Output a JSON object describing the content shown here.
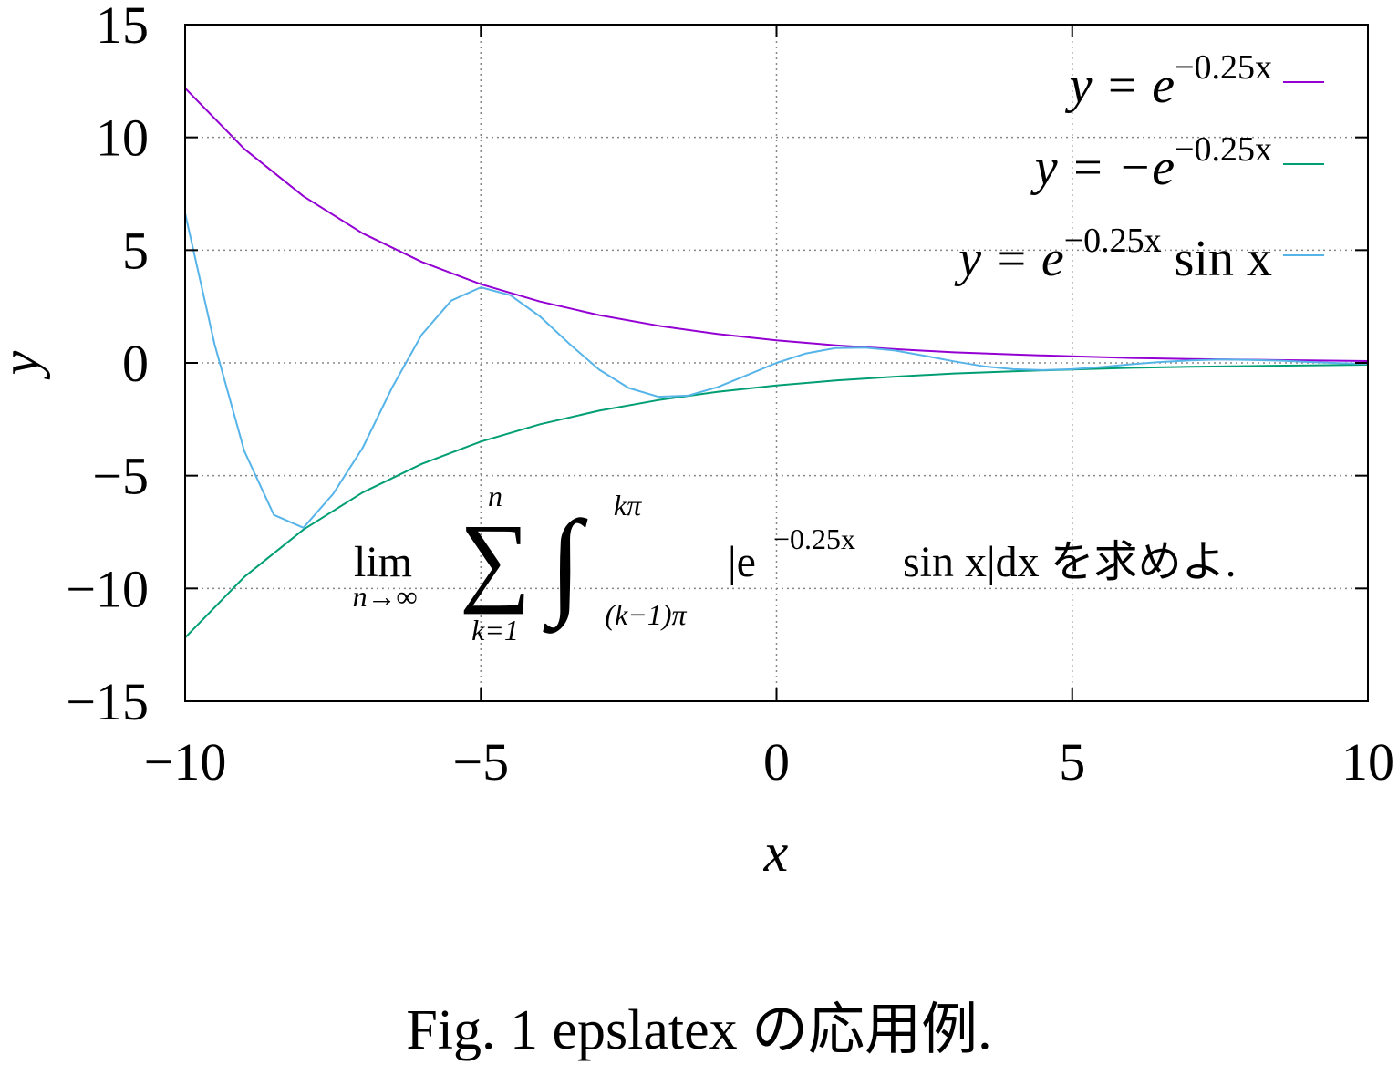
{
  "chart_data": {
    "type": "line",
    "xlabel": "x",
    "ylabel": "y",
    "xlim": [
      -10,
      10
    ],
    "ylim": [
      -15,
      15
    ],
    "grid": true,
    "grid_style": "dotted",
    "legend_placement": "top-right",
    "x_ticks": [
      -10,
      -5,
      0,
      5,
      10
    ],
    "y_ticks": [
      -15,
      -10,
      -5,
      0,
      5,
      10,
      15
    ],
    "x_tick_labels": [
      "−10",
      "−5",
      "0",
      "5",
      "10"
    ],
    "y_tick_labels": [
      "−15",
      "−10",
      "−5",
      "0",
      "5",
      "10",
      "15"
    ],
    "series": [
      {
        "name": "y = e^{−0.25x}",
        "legend": {
          "main": "y = e",
          "sup": "−0.25x",
          "tail": ""
        },
        "color": "#9400d3",
        "x": [
          -10,
          -9,
          -8,
          -7,
          -6,
          -5,
          -4,
          -3,
          -2,
          -1,
          0,
          1,
          2,
          3,
          4,
          5,
          6,
          7,
          8,
          9,
          10
        ],
        "y": [
          12.18,
          9.49,
          7.39,
          5.75,
          4.48,
          3.49,
          2.72,
          2.12,
          1.65,
          1.28,
          1.0,
          0.78,
          0.61,
          0.47,
          0.37,
          0.29,
          0.22,
          0.17,
          0.14,
          0.11,
          0.08
        ]
      },
      {
        "name": "y = −e^{−0.25x}",
        "legend": {
          "main": "y = −e",
          "sup": "−0.25x",
          "tail": ""
        },
        "color": "#009e73",
        "x": [
          -10,
          -9,
          -8,
          -7,
          -6,
          -5,
          -4,
          -3,
          -2,
          -1,
          0,
          1,
          2,
          3,
          4,
          5,
          6,
          7,
          8,
          9,
          10
        ],
        "y": [
          -12.18,
          -9.49,
          -7.39,
          -5.75,
          -4.48,
          -3.49,
          -2.72,
          -2.12,
          -1.65,
          -1.28,
          -1.0,
          -0.78,
          -0.61,
          -0.47,
          -0.37,
          -0.29,
          -0.22,
          -0.17,
          -0.14,
          -0.11,
          -0.08
        ]
      },
      {
        "name": "y = e^{−0.25x} sin x",
        "legend": {
          "main": "y = e",
          "sup": "−0.25x",
          "tail": " sin x"
        },
        "color": "#56b4e9",
        "x": [
          -10,
          -9.5,
          -9,
          -8.5,
          -8,
          -7.5,
          -7,
          -6.5,
          -6,
          -5.5,
          -5,
          -4.5,
          -4,
          -3.5,
          -3,
          -2.5,
          -2,
          -1.5,
          -1,
          -0.5,
          0,
          0.5,
          1,
          1.5,
          2,
          2.5,
          3,
          3.5,
          4,
          4.5,
          5,
          5.5,
          6,
          6.5,
          7,
          7.5,
          8,
          8.5,
          9,
          9.5,
          10
        ],
        "y": [
          6.63,
          0.81,
          -3.91,
          -6.74,
          -7.31,
          -5.82,
          -3.78,
          -1.09,
          1.25,
          2.76,
          3.35,
          3.0,
          2.06,
          0.84,
          -0.3,
          -1.11,
          -1.5,
          -1.45,
          -1.08,
          -0.54,
          0.0,
          0.42,
          0.66,
          0.68,
          0.55,
          0.32,
          0.07,
          -0.15,
          -0.28,
          -0.32,
          -0.28,
          -0.18,
          -0.06,
          0.04,
          0.11,
          0.15,
          0.13,
          0.1,
          0.04,
          -0.01,
          -0.04
        ]
      }
    ],
    "annotation": {
      "lim": "lim",
      "lim_sub": "n→∞",
      "sum": "∑",
      "sum_top": "n",
      "sum_bottom": "k=1",
      "integral": "∫",
      "int_top": "kπ",
      "int_bottom": "(k−1)π",
      "integrand": "|e",
      "integrand_sup": "−0.25x",
      "integrand_tail": " sin x|dx を求めよ."
    }
  },
  "caption": "Fig. 1 epslatex の応用例."
}
